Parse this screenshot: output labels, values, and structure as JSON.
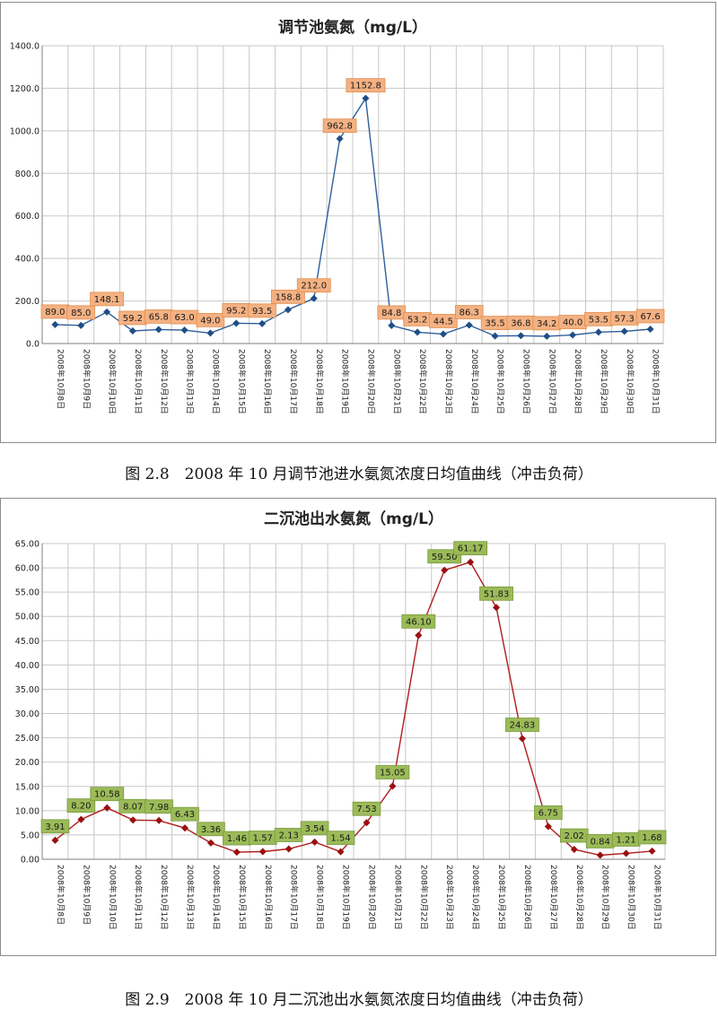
{
  "chart_data": [
    {
      "type": "line",
      "title": "调节池氨氮（mg/L）",
      "caption": "图 2.8　2008 年 10 月调节池进水氨氮浓度日均值曲线（冲击负荷）",
      "categories": [
        "2008年10月8日",
        "2008年10月9日",
        "2008年10月10日",
        "2008年10月11日",
        "2008年10月12日",
        "2008年10月13日",
        "2008年10月14日",
        "2008年10月15日",
        "2008年10月16日",
        "2008年10月17日",
        "2008年10月18日",
        "2008年10月19日",
        "2008年10月20日",
        "2008年10月21日",
        "2008年10月22日",
        "2008年10月23日",
        "2008年10月24日",
        "2008年10月25日",
        "2008年10月26日",
        "2008年10月27日",
        "2008年10月28日",
        "2008年10月29日",
        "2008年10月30日",
        "2008年10月31日"
      ],
      "values": [
        89.0,
        85.0,
        148.1,
        59.2,
        65.8,
        63.0,
        49.0,
        95.2,
        93.5,
        158.8,
        212.0,
        962.8,
        1152.8,
        84.8,
        53.2,
        44.5,
        86.3,
        35.5,
        36.8,
        34.2,
        40.0,
        53.5,
        57.3,
        67.6
      ],
      "data_labels": [
        "89.0",
        "85.0",
        "148.1",
        "59.2",
        "65.8",
        "63.0",
        "49.0",
        "95.2",
        "93.5",
        "158.8",
        "212.0",
        "962.8",
        "1152.8",
        "84.8",
        "53.2",
        "44.5",
        "86.3",
        "35.5",
        "36.8",
        "34.2",
        "40.0",
        "53.5",
        "57.3",
        "67.6"
      ],
      "yticks": [
        "0.0",
        "200.0",
        "400.0",
        "600.0",
        "800.0",
        "1000.0",
        "1200.0",
        "1400.0"
      ],
      "ylim": [
        0,
        1400
      ],
      "grid": true,
      "line_color": "#2e5f9a",
      "marker_color": "#1f4e85",
      "label_bg": "#f4b183",
      "label_border": "#e0904f"
    },
    {
      "type": "line",
      "title": "二沉池出水氨氮（mg/L）",
      "caption": "图 2.9　2008 年 10 月二沉池出水氨氮浓度日均值曲线（冲击负荷）",
      "categories": [
        "2008年10月8日",
        "2008年10月9日",
        "2008年10月10日",
        "2008年10月11日",
        "2008年10月12日",
        "2008年10月13日",
        "2008年10月14日",
        "2008年10月15日",
        "2008年10月16日",
        "2008年10月17日",
        "2008年10月18日",
        "2008年10月19日",
        "2008年10月20日",
        "2008年10月21日",
        "2008年10月22日",
        "2008年10月23日",
        "2008年10月24日",
        "2008年10月25日",
        "2008年10月26日",
        "2008年10月27日",
        "2008年10月28日",
        "2008年10月29日",
        "2008年10月30日",
        "2008年10月31日"
      ],
      "values": [
        3.91,
        8.2,
        10.58,
        8.07,
        7.98,
        6.43,
        3.36,
        1.46,
        1.57,
        2.13,
        3.54,
        1.54,
        7.53,
        15.05,
        46.1,
        59.5,
        61.17,
        51.83,
        24.83,
        6.75,
        2.02,
        0.84,
        1.21,
        1.68
      ],
      "data_labels": [
        "3.91",
        "8.20",
        "10.58",
        "8.07",
        "7.98",
        "6.43",
        "3.36",
        "1.46",
        "1.57",
        "2.13",
        "3.54",
        "1.54",
        "7.53",
        "15.05",
        "46.10",
        "59.50",
        "61.17",
        "51.83",
        "24.83",
        "6.75",
        "2.02",
        "0.84",
        "1.21",
        "1.68"
      ],
      "yticks": [
        "0.00",
        "5.00",
        "10.00",
        "15.00",
        "20.00",
        "25.00",
        "30.00",
        "35.00",
        "40.00",
        "45.00",
        "50.00",
        "55.00",
        "60.00",
        "65.00"
      ],
      "ylim": [
        0,
        65
      ],
      "grid": true,
      "line_color": "#b01c1c",
      "marker_color": "#9a0f0f",
      "label_bg": "#9bbb59",
      "label_border": "#7a9a3c"
    }
  ]
}
